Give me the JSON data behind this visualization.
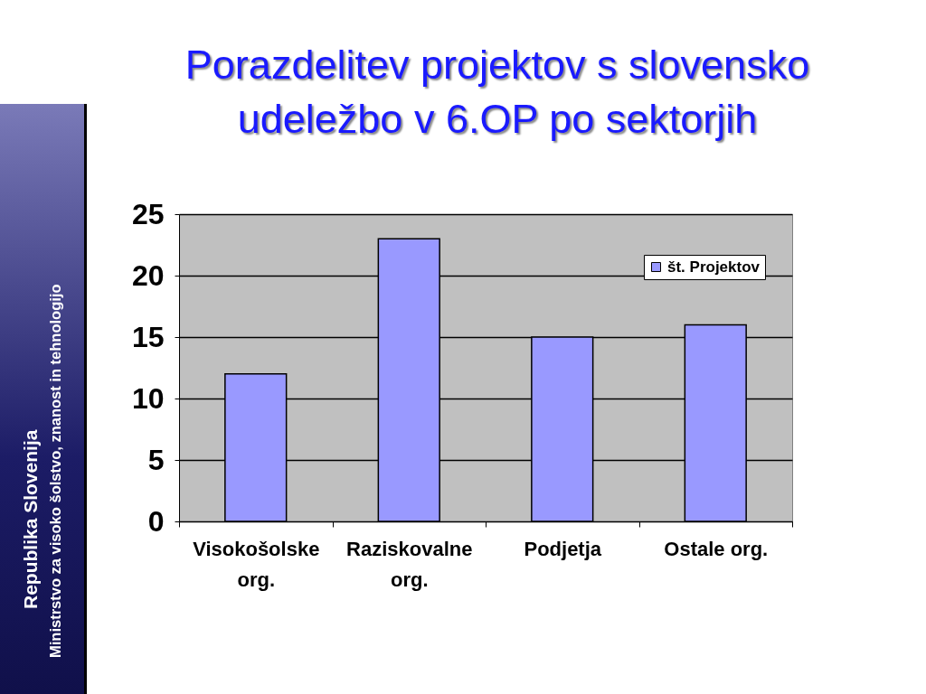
{
  "chart_data": {
    "type": "bar",
    "title": "Porazdelitev projektov s slovensko udeležbo v 6.OP po sektorjih",
    "categories": [
      "Visokošolske org.",
      "Raziskovalne org.",
      "Podjetja",
      "Ostale org."
    ],
    "series": [
      {
        "name": "št. Projektov",
        "color": "#9999ff",
        "values": [
          12,
          23,
          15,
          16
        ]
      }
    ],
    "ylim": [
      0,
      25
    ],
    "yticks": [
      0,
      5,
      10,
      15,
      20,
      25
    ],
    "grid": "y",
    "legend": "top right",
    "annotations": [
      "Republika Slovenija",
      "Ministrstvo za visoko šolstvo, znanost in tehnologijo"
    ]
  }
}
